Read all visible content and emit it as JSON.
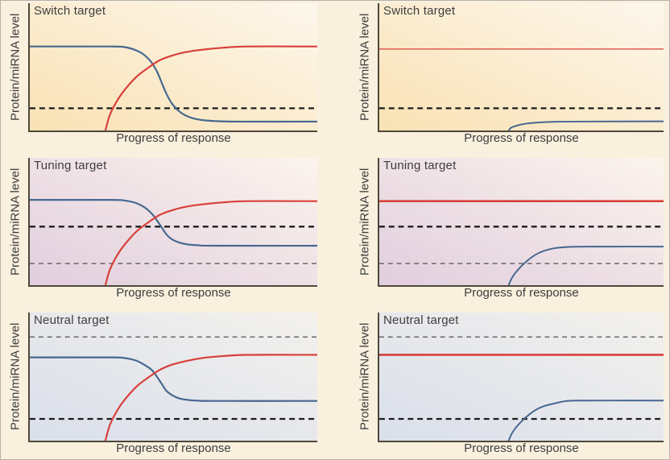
{
  "figure": {
    "ylabel": "Protein/miRNA level",
    "xlabel": "Progress of response",
    "panels": [
      {
        "title": "Switch target"
      },
      {
        "title": "Switch target"
      },
      {
        "title": "Tuning target"
      },
      {
        "title": "Tuning target"
      },
      {
        "title": "Neutral target"
      },
      {
        "title": "Neutral target"
      }
    ],
    "colors": {
      "red_line": "#d8403a",
      "blue_line": "#46678f",
      "dashed_black": "#1d1d1d",
      "dashed_gray": "#4f4f4f",
      "axis": "#4e4839",
      "text": "#3d3d3d",
      "page_bg": "#faf0de",
      "switch_bg": "#f9e2b4",
      "tuning_bg": "#e1cede",
      "neutral_bg": "#dadfeb"
    }
  },
  "chart_data": [
    {
      "type": "line",
      "title": "Switch target",
      "xlabel": "Progress of response",
      "ylabel": "Protein/miRNA level",
      "axes": "qualitative, no ticks; x 0-100 progress, y 0-100 relative level",
      "series": [
        {
          "name": "blue",
          "color": "#46678f",
          "width": 2.2,
          "points": [
            [
              0,
              66
            ],
            [
              28,
              66
            ],
            [
              33,
              65.5
            ],
            [
              37,
              63
            ],
            [
              40,
              59
            ],
            [
              42.5,
              53
            ],
            [
              44.5,
              45
            ],
            [
              46,
              37
            ],
            [
              47.5,
              29
            ],
            [
              49.5,
              21
            ],
            [
              52,
              15
            ],
            [
              55,
              11
            ],
            [
              59,
              8.5
            ],
            [
              64,
              7.5
            ],
            [
              72,
              7
            ],
            [
              100,
              7
            ]
          ]
        },
        {
          "name": "red",
          "color": "#d8403a",
          "width": 2.2,
          "points": [
            [
              26,
              -3
            ],
            [
              27,
              6
            ],
            [
              28,
              13
            ],
            [
              30,
              22
            ],
            [
              32,
              29
            ],
            [
              34.5,
              36
            ],
            [
              37.5,
              43
            ],
            [
              41,
              49
            ],
            [
              45,
              55
            ],
            [
              49,
              58.5
            ],
            [
              54,
              61.5
            ],
            [
              60,
              63.5
            ],
            [
              67,
              65
            ],
            [
              76,
              66
            ],
            [
              100,
              66
            ]
          ]
        }
      ],
      "thresholds": [
        {
          "level": 17.5,
          "color": "#1d1d1d",
          "width": 2.3,
          "dash": "7 5"
        }
      ]
    },
    {
      "type": "line",
      "title": "Switch target",
      "xlabel": "Progress of response",
      "ylabel": "Protein/miRNA level",
      "axes": "qualitative, no ticks; x 0-100 progress, y 0-100 relative level",
      "series": [
        {
          "name": "red",
          "color": "#d8403a",
          "width": 1.3,
          "points": [
            [
              0,
              64
            ],
            [
              100,
              64
            ]
          ]
        },
        {
          "name": "blue",
          "color": "#46678f",
          "width": 2,
          "points": [
            [
              45,
              -3
            ],
            [
              46,
              1.5
            ],
            [
              47.5,
              3.2
            ],
            [
              49.5,
              4.5
            ],
            [
              52,
              5.5
            ],
            [
              56,
              6.3
            ],
            [
              61,
              6.8
            ],
            [
              68,
              7
            ],
            [
              100,
              7.2
            ]
          ]
        }
      ],
      "thresholds": [
        {
          "level": 17.5,
          "color": "#1d1d1d",
          "width": 2.3,
          "dash": "7 5"
        }
      ]
    },
    {
      "type": "line",
      "title": "Tuning target",
      "xlabel": "Progress of response",
      "ylabel": "Protein/miRNA level",
      "axes": "qualitative, no ticks; x 0-100 progress, y 0-100 relative level",
      "series": [
        {
          "name": "blue",
          "color": "#46678f",
          "width": 2.2,
          "points": [
            [
              0,
              67
            ],
            [
              28,
              67
            ],
            [
              33,
              66.5
            ],
            [
              37,
              64.5
            ],
            [
              40,
              61
            ],
            [
              42.5,
              56
            ],
            [
              44.5,
              50
            ],
            [
              46,
              45
            ],
            [
              47.5,
              40
            ],
            [
              49.5,
              36
            ],
            [
              52,
              33.5
            ],
            [
              55,
              32
            ],
            [
              59,
              31.3
            ],
            [
              64,
              31
            ],
            [
              100,
              31
            ]
          ]
        },
        {
          "name": "red",
          "color": "#d8403a",
          "width": 2.2,
          "points": [
            [
              26,
              -3
            ],
            [
              27,
              6
            ],
            [
              28,
              13
            ],
            [
              30,
              22
            ],
            [
              32,
              29
            ],
            [
              34.5,
              36
            ],
            [
              37.5,
              43
            ],
            [
              41,
              49
            ],
            [
              45,
              55
            ],
            [
              49,
              58.5
            ],
            [
              54,
              61.5
            ],
            [
              60,
              63.5
            ],
            [
              67,
              65
            ],
            [
              76,
              66
            ],
            [
              100,
              66
            ]
          ]
        }
      ],
      "thresholds": [
        {
          "level": 46,
          "color": "#1d1d1d",
          "width": 2.3,
          "dash": "7 5"
        },
        {
          "level": 17,
          "color": "#4f4f4f",
          "width": 1.3,
          "dash": "6 5"
        }
      ]
    },
    {
      "type": "line",
      "title": "Tuning target",
      "xlabel": "Progress of response",
      "ylabel": "Protein/miRNA level",
      "axes": "qualitative, no ticks; x 0-100 progress, y 0-100 relative level",
      "series": [
        {
          "name": "red",
          "color": "#d8403a",
          "width": 2.6,
          "points": [
            [
              0,
              66
            ],
            [
              100,
              66
            ]
          ]
        },
        {
          "name": "blue",
          "color": "#46678f",
          "width": 2,
          "points": [
            [
              45,
              -3
            ],
            [
              46.5,
              5
            ],
            [
              48,
              10
            ],
            [
              50,
              15
            ],
            [
              52.5,
              20
            ],
            [
              55,
              24
            ],
            [
              58,
              27
            ],
            [
              61.5,
              29
            ],
            [
              66,
              30
            ],
            [
              73,
              30.3
            ],
            [
              100,
              30.3
            ]
          ]
        }
      ],
      "thresholds": [
        {
          "level": 46,
          "color": "#1d1d1d",
          "width": 2.3,
          "dash": "7 5"
        },
        {
          "level": 17,
          "color": "#4f4f4f",
          "width": 1.3,
          "dash": "6 5"
        }
      ]
    },
    {
      "type": "line",
      "title": "Neutral target",
      "xlabel": "Progress of response",
      "ylabel": "Protein/miRNA level",
      "axes": "qualitative, no ticks; x 0-100 progress, y 0-100 relative level",
      "series": [
        {
          "name": "blue",
          "color": "#46678f",
          "width": 2.2,
          "points": [
            [
              0,
              65
            ],
            [
              28,
              65
            ],
            [
              33,
              64.5
            ],
            [
              37,
              62.5
            ],
            [
              40,
              59
            ],
            [
              42.5,
              55
            ],
            [
              44.5,
              49
            ],
            [
              46,
              44
            ],
            [
              47.5,
              39
            ],
            [
              49.5,
              35.5
            ],
            [
              52,
              33
            ],
            [
              55,
              31.8
            ],
            [
              59,
              31.2
            ],
            [
              64,
              31
            ],
            [
              100,
              31
            ]
          ]
        },
        {
          "name": "red",
          "color": "#d8403a",
          "width": 2.2,
          "points": [
            [
              26,
              -3
            ],
            [
              27,
              6
            ],
            [
              28,
              13
            ],
            [
              30,
              22
            ],
            [
              32,
              29
            ],
            [
              34.5,
              36
            ],
            [
              37.5,
              43
            ],
            [
              41,
              49
            ],
            [
              45,
              55
            ],
            [
              49,
              59
            ],
            [
              54,
              62
            ],
            [
              60,
              64.5
            ],
            [
              67,
              66
            ],
            [
              76,
              67
            ],
            [
              100,
              67
            ]
          ]
        }
      ],
      "thresholds": [
        {
          "level": 81,
          "color": "#4f4f4f",
          "width": 1.3,
          "dash": "6 5"
        },
        {
          "level": 17,
          "color": "#1d1d1d",
          "width": 2.3,
          "dash": "7 5"
        }
      ]
    },
    {
      "type": "line",
      "title": "Neutral target",
      "xlabel": "Progress of response",
      "ylabel": "Protein/miRNA level",
      "axes": "qualitative, no ticks; x 0-100 progress, y 0-100 relative level",
      "series": [
        {
          "name": "red",
          "color": "#d8403a",
          "width": 2.6,
          "points": [
            [
              0,
              67
            ],
            [
              100,
              67
            ]
          ]
        },
        {
          "name": "blue",
          "color": "#46678f",
          "width": 2,
          "points": [
            [
              45,
              -3
            ],
            [
              46.5,
              5
            ],
            [
              48,
              10
            ],
            [
              50,
              15
            ],
            [
              52.5,
              20
            ],
            [
              55,
              24
            ],
            [
              58,
              27
            ],
            [
              61.5,
              29
            ],
            [
              66,
              31
            ],
            [
              73,
              31.3
            ],
            [
              100,
              31.3
            ]
          ]
        }
      ],
      "thresholds": [
        {
          "level": 81,
          "color": "#4f4f4f",
          "width": 1.3,
          "dash": "6 5"
        },
        {
          "level": 17,
          "color": "#1d1d1d",
          "width": 2.3,
          "dash": "7 5"
        }
      ]
    }
  ]
}
